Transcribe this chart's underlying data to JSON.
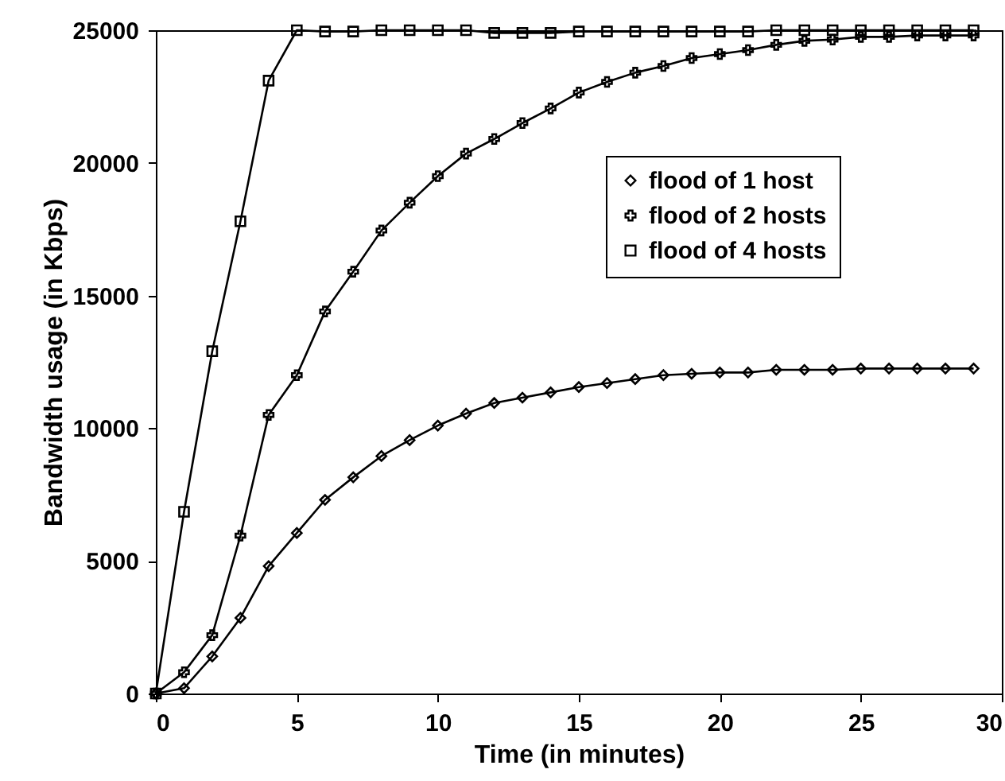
{
  "chart_data": {
    "type": "line",
    "xlabel": "Time (in minutes)",
    "ylabel": "Bandwidth usage (in Kbps)",
    "x": [
      0,
      1,
      2,
      3,
      4,
      5,
      6,
      7,
      8,
      9,
      10,
      11,
      12,
      13,
      14,
      15,
      16,
      17,
      18,
      19,
      20,
      21,
      22,
      23,
      24,
      25,
      26,
      27,
      28,
      29
    ],
    "xlim": [
      0,
      30
    ],
    "xticks": [
      0,
      5,
      10,
      15,
      20,
      25,
      30
    ],
    "ylim": [
      0,
      25000
    ],
    "yticks": [
      0,
      5000,
      10000,
      15000,
      20000,
      25000
    ],
    "grid": false,
    "legend": "right",
    "line_style": "solid",
    "series": [
      {
        "name": "flood of 1 host",
        "color": "#000000",
        "marker": "diamond",
        "values": [
          0,
          200,
          1400,
          2850,
          4800,
          6050,
          7300,
          8150,
          8950,
          9550,
          10100,
          10550,
          10950,
          11150,
          11350,
          11550,
          11700,
          11850,
          12000,
          12050,
          12100,
          12100,
          12200,
          12200,
          12200,
          12250,
          12250,
          12250,
          12250,
          12250
        ]
      },
      {
        "name": "flood of 2 hosts",
        "color": "#000000",
        "marker": "cross",
        "values": [
          0,
          800,
          2200,
          5950,
          10500,
          12000,
          14400,
          15900,
          17450,
          18500,
          19500,
          20350,
          20900,
          21500,
          22050,
          22650,
          23050,
          23400,
          23650,
          23950,
          24100,
          24250,
          24450,
          24600,
          24650,
          24750,
          24750,
          24800,
          24800,
          24800
        ]
      },
      {
        "name": "flood of 4 hosts",
        "color": "#000000",
        "marker": "square",
        "values": [
          0,
          6850,
          12900,
          17800,
          23100,
          25000,
          24950,
          24950,
          25000,
          25000,
          25000,
          25000,
          24900,
          24900,
          24900,
          24950,
          24950,
          24950,
          24950,
          24950,
          24950,
          24950,
          25000,
          25000,
          25000,
          25000,
          25000,
          25000,
          25000,
          25000
        ]
      }
    ]
  }
}
